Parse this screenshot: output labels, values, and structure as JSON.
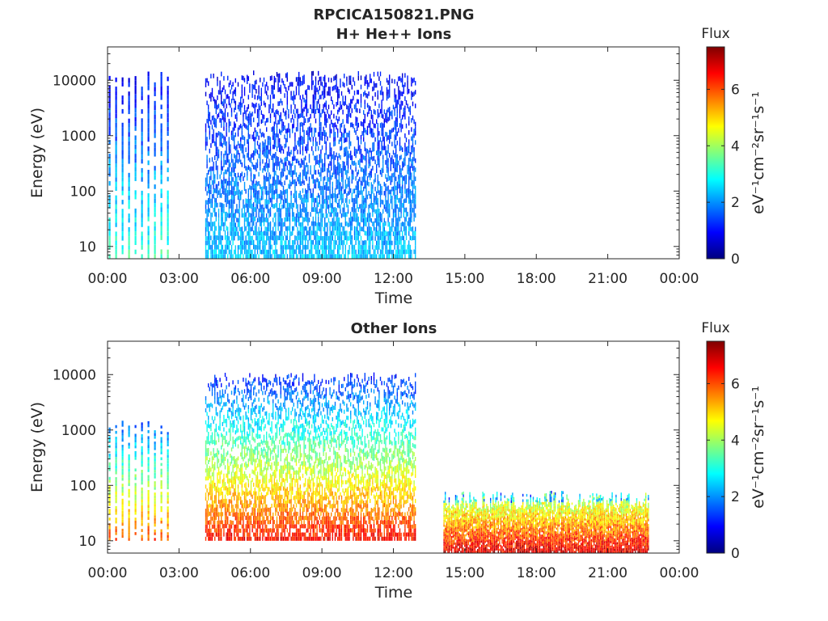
{
  "figure_title": "RPCICA150821.PNG",
  "colormap": [
    "#00007f",
    "#0000ff",
    "#007fff",
    "#00ffff",
    "#7fff7f",
    "#ffff00",
    "#ff7f00",
    "#ff0000",
    "#7f0000"
  ],
  "chart_data": [
    {
      "type": "heatmap",
      "title": "H+ He++ Ions",
      "xlabel": "Time",
      "ylabel": "Energy (eV)",
      "x_ticks": [
        "00:00",
        "03:00",
        "06:00",
        "09:00",
        "12:00",
        "15:00",
        "18:00",
        "21:00",
        "00:00"
      ],
      "xlim_hours": [
        0,
        24
      ],
      "y_scale": "log",
      "ylim": [
        6,
        40000
      ],
      "y_ticks": [
        10,
        100,
        1000,
        10000
      ],
      "y_tick_labels": [
        "10",
        "100",
        "1000",
        "10000"
      ],
      "grid": false,
      "colorbar": {
        "label": "Flux",
        "units_label": "eV⁻¹cm⁻²sr⁻¹s⁻¹",
        "range": [
          0,
          7.5
        ],
        "ticks": [
          0,
          2,
          4,
          6
        ],
        "tick_labels": [
          "0",
          "2",
          "4",
          "6"
        ]
      },
      "blocks": [
        {
          "name": "burst",
          "t_start_h": 0.05,
          "t_end_h": 2.5,
          "e_low": 6,
          "e_high": 15000,
          "flux_low_energy": 3.2,
          "flux_high_energy": 0.8,
          "style": "stripes"
        },
        {
          "name": "dense",
          "t_start_h": 4.1,
          "t_end_h": 12.9,
          "e_low": 6,
          "e_high": 15000,
          "flux_low_energy": 2.4,
          "flux_high_energy": 0.8,
          "style": "dense"
        }
      ]
    },
    {
      "type": "heatmap",
      "title": "Other Ions",
      "xlabel": "Time",
      "ylabel": "Energy (eV)",
      "x_ticks": [
        "00:00",
        "03:00",
        "06:00",
        "09:00",
        "12:00",
        "15:00",
        "18:00",
        "21:00",
        "00:00"
      ],
      "xlim_hours": [
        0,
        24
      ],
      "y_scale": "log",
      "ylim": [
        6,
        40000
      ],
      "y_ticks": [
        10,
        100,
        1000,
        10000
      ],
      "y_tick_labels": [
        "10",
        "100",
        "1000",
        "10000"
      ],
      "grid": false,
      "colorbar": {
        "label": "Flux",
        "units_label": "eV⁻¹cm⁻²sr⁻¹s⁻¹",
        "range": [
          0,
          7.5
        ],
        "ticks": [
          0,
          2,
          4,
          6
        ],
        "tick_labels": [
          "0",
          "2",
          "4",
          "6"
        ]
      },
      "blocks": [
        {
          "name": "burst",
          "t_start_h": 0.05,
          "t_end_h": 2.5,
          "e_low": 10,
          "e_high": 1500,
          "flux_low_energy": 6.0,
          "flux_high_energy": 1.5,
          "style": "stripes"
        },
        {
          "name": "dense",
          "t_start_h": 4.1,
          "t_end_h": 12.9,
          "e_low": 10,
          "e_high": 11000,
          "flux_low_energy": 6.5,
          "flux_high_energy": 1.0,
          "style": "dense"
        },
        {
          "name": "heavy",
          "t_start_h": 14.1,
          "t_end_h": 22.7,
          "e_low": 6,
          "e_high": 80,
          "flux_low_energy": 6.8,
          "flux_high_energy": 3.5,
          "style": "hot"
        }
      ]
    }
  ]
}
